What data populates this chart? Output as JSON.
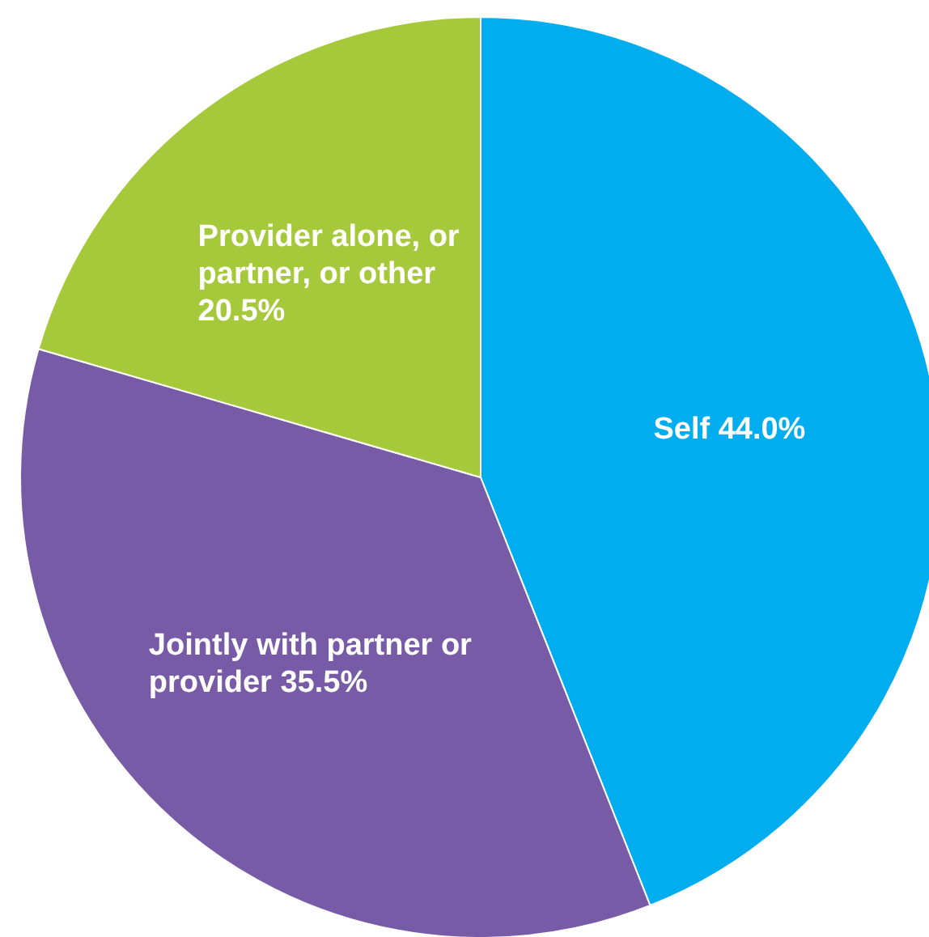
{
  "chart_data": {
    "type": "pie",
    "categories": [
      "Self",
      "Jointly with partner or provider",
      "Provider alone, or partner, or other"
    ],
    "values": [
      44.0,
      35.5,
      20.5
    ],
    "value_labels": [
      "44.0%",
      "35.5%",
      "20.5%"
    ],
    "colors": [
      "#00aeef",
      "#775ba6",
      "#a5c93a"
    ],
    "legend": false
  }
}
